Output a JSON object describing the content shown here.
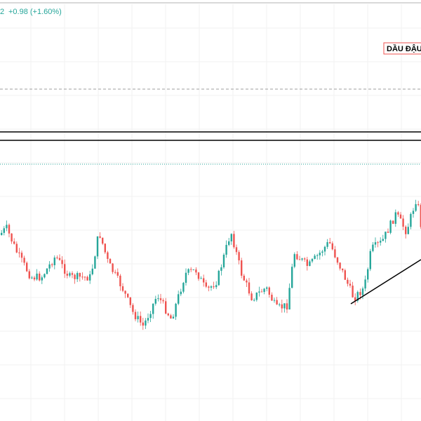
{
  "header": {
    "price_tail": "2",
    "change": "+0.98 (+1.60%)"
  },
  "label": "DẦU ĐẬU"
}
